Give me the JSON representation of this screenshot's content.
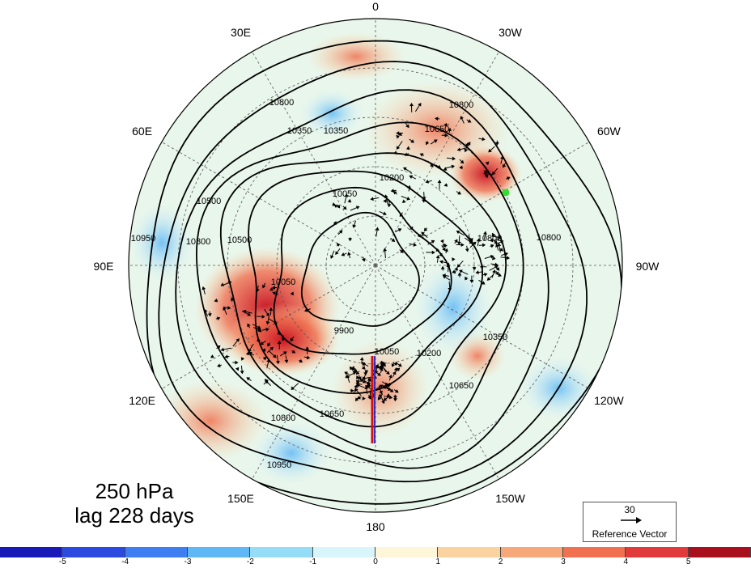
{
  "title": {
    "level": "250 hPa",
    "lag": "lag 228 days"
  },
  "longitude_labels": [
    {
      "text": "0",
      "lon": 0
    },
    {
      "text": "30W",
      "lon": -30
    },
    {
      "text": "60W",
      "lon": -60
    },
    {
      "text": "90W",
      "lon": -90
    },
    {
      "text": "120W",
      "lon": -120
    },
    {
      "text": "150W",
      "lon": -150
    },
    {
      "text": "180",
      "lon": 180
    },
    {
      "text": "150E",
      "lon": 150
    },
    {
      "text": "120E",
      "lon": 120
    },
    {
      "text": "90E",
      "lon": 90
    },
    {
      "text": "60E",
      "lon": 60
    },
    {
      "text": "30E",
      "lon": 30
    }
  ],
  "contour_labels": [
    "10800",
    "10650",
    "10500",
    "10350",
    "10200",
    "10050",
    "9900",
    "10950"
  ],
  "reference_vector": {
    "magnitude": "30",
    "label": "Reference Vector"
  },
  "colorbar": {
    "colors": [
      "#1a1ab8",
      "#2b4be0",
      "#3e7ef0",
      "#5fb8f5",
      "#95dcf7",
      "#d8f5fb",
      "#fdf6d8",
      "#fbd3a0",
      "#f7a878",
      "#f07050",
      "#e03a3a",
      "#a8101e"
    ],
    "ticks": [
      "-5",
      "-4",
      "-3",
      "-2",
      "-1",
      "0",
      "1",
      "2",
      "3",
      "4",
      "5"
    ]
  },
  "marker_color": "#33dd33"
}
